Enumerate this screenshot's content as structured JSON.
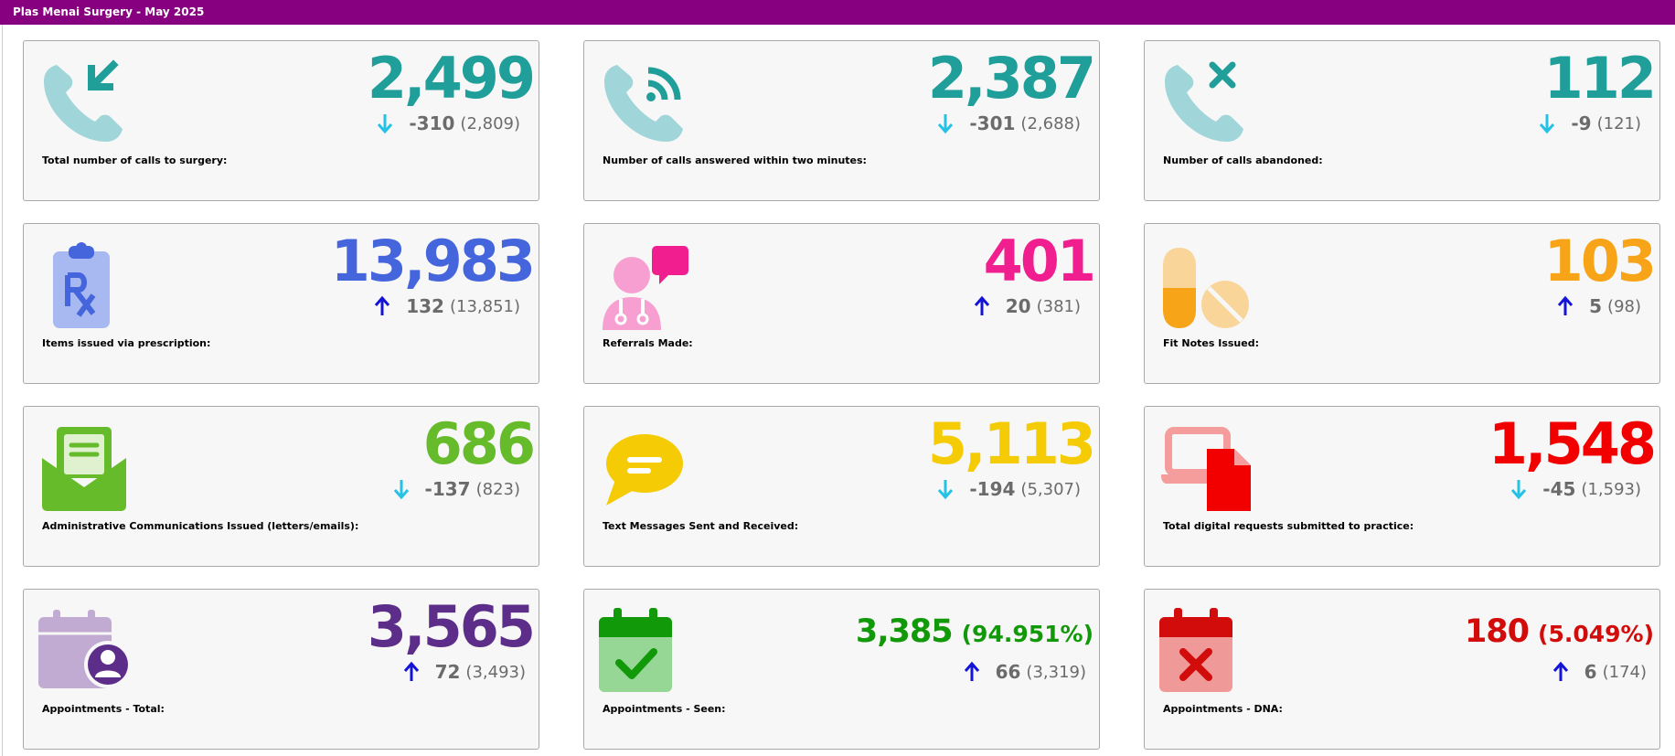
{
  "header": {
    "title": "Plas Menai Surgery - May 2025"
  },
  "cards": [
    {
      "icon": "phone-incoming-icon",
      "label": "Total number of calls to surgery:",
      "value": "2,499",
      "direction": "down",
      "change": "-310",
      "previous": "(2,809)",
      "color": "#209e9a"
    },
    {
      "icon": "phone-answered-icon",
      "label": "Number of calls answered within two minutes:",
      "value": "2,387",
      "direction": "down",
      "change": "-301",
      "previous": "(2,688)",
      "color": "#209e9a"
    },
    {
      "icon": "phone-missed-icon",
      "label": "Number of calls abandoned:",
      "value": "112",
      "direction": "down",
      "change": "-9",
      "previous": "(121)",
      "color": "#209e9a"
    },
    {
      "icon": "prescription-clipboard-icon",
      "label": "Items issued via prescription:",
      "value": "13,983",
      "direction": "up",
      "change": "132",
      "previous": "(13,851)",
      "color": "#4565dc"
    },
    {
      "icon": "doctor-chat-icon",
      "label": "Referrals Made:",
      "value": "401",
      "direction": "up",
      "change": "20",
      "previous": "(381)",
      "color": "#f01e8e"
    },
    {
      "icon": "pills-icon",
      "label": "Fit Notes Issued:",
      "value": "103",
      "direction": "up",
      "change": "5",
      "previous": "(98)",
      "color": "#f7a419"
    },
    {
      "icon": "envelope-open-icon",
      "label": "Administrative Communications Issued (letters/emails):",
      "value": "686",
      "direction": "down",
      "change": "-137",
      "previous": "(823)",
      "color": "#66bb2a"
    },
    {
      "icon": "chat-bubble-icon",
      "label": "Text Messages Sent and Received:",
      "value": "5,113",
      "direction": "down",
      "change": "-194",
      "previous": "(5,307)",
      "color": "#f4cb04"
    },
    {
      "icon": "laptop-file-icon",
      "label": "Total digital requests submitted to practice:",
      "value": "1,548",
      "direction": "down",
      "change": "-45",
      "previous": "(1,593)",
      "color": "#f20000"
    },
    {
      "icon": "calendar-user-icon",
      "label": "Appointments - Total:",
      "value": "3,565",
      "percent": "",
      "direction": "up",
      "change": "72",
      "previous": "(3,493)",
      "color": "#5c2e89"
    },
    {
      "icon": "calendar-check-icon",
      "label": "Appointments - Seen:",
      "value": "3,385",
      "percent": "(94.951%)",
      "direction": "up",
      "change": "66",
      "previous": "(3,319)",
      "color": "#12990a"
    },
    {
      "icon": "calendar-cross-icon",
      "label": "Appointments - DNA:",
      "value": "180",
      "percent": "(5.049%)",
      "direction": "up",
      "change": "6",
      "previous": "(174)",
      "color": "#d20b0b"
    }
  ],
  "arrow_colors": {
    "down": "#26c2e6",
    "up": "#1414d8"
  }
}
